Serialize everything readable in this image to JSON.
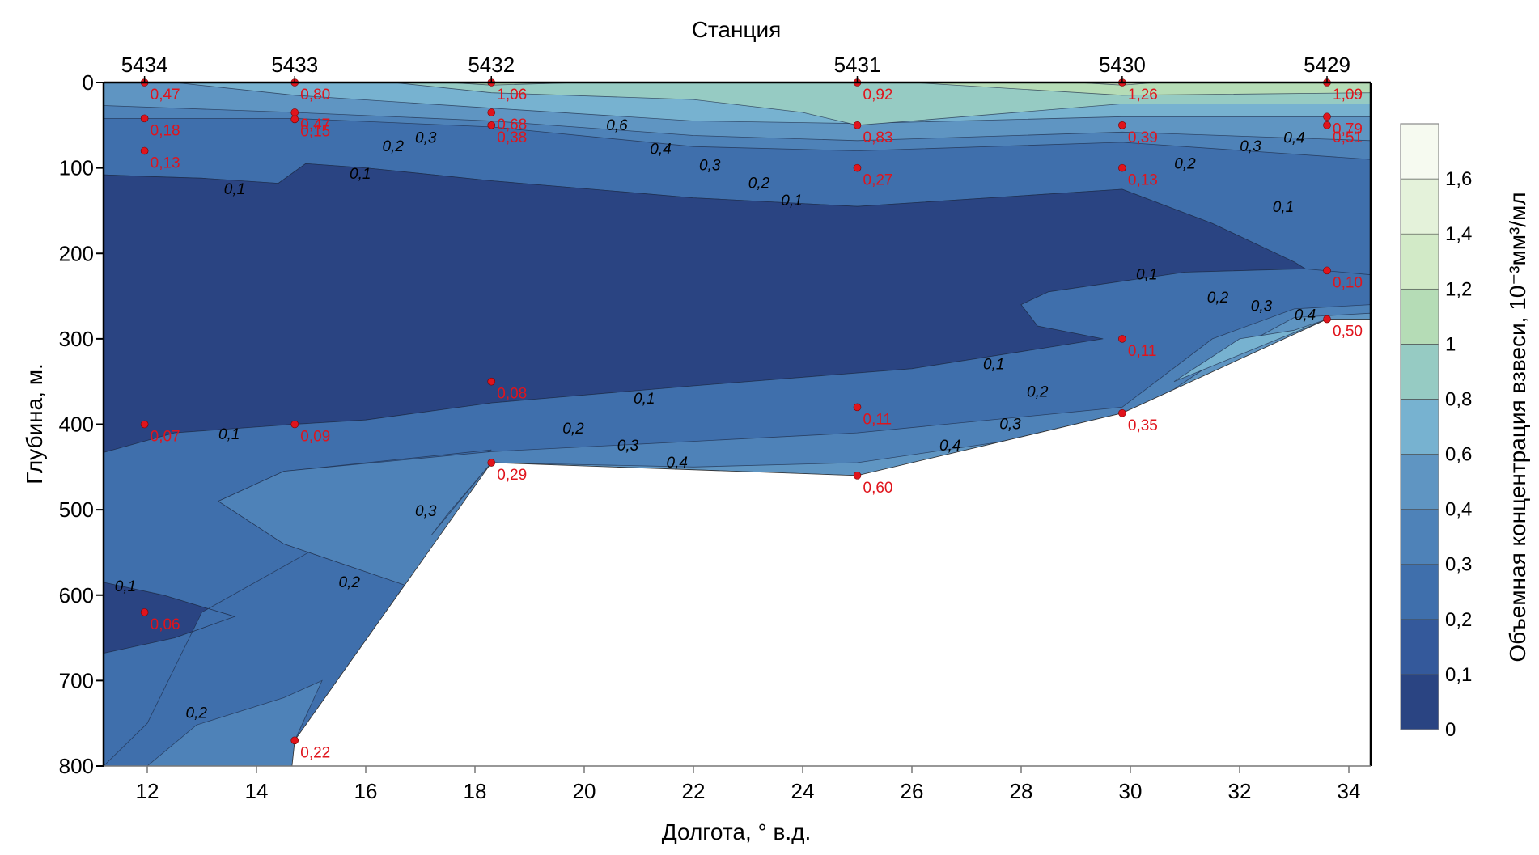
{
  "chart_data": {
    "type": "contour",
    "title": "Станция",
    "xlabel": "Долгота, ° в.д.",
    "ylabel": "Глубина, м.",
    "xlim": [
      11.2,
      34.4
    ],
    "ylim": [
      800,
      0
    ],
    "x_ticks": [
      12,
      14,
      16,
      18,
      20,
      22,
      24,
      26,
      28,
      30,
      32,
      34
    ],
    "y_ticks": [
      0,
      100,
      200,
      300,
      400,
      500,
      600,
      700,
      800
    ],
    "stations": [
      {
        "id": "5434",
        "lon": 11.95
      },
      {
        "id": "5433",
        "lon": 14.7
      },
      {
        "id": "5432",
        "lon": 18.3
      },
      {
        "id": "5431",
        "lon": 25.0
      },
      {
        "id": "5430",
        "lon": 29.85
      },
      {
        "id": "5429",
        "lon": 33.6
      }
    ],
    "colorbar": {
      "label": "Объемная концентрация взвеси, 10⁻³мм³/мл",
      "levels": [
        0,
        0.1,
        0.2,
        0.3,
        0.4,
        0.6,
        0.8,
        1,
        1.2,
        1.4,
        1.6,
        1.8
      ],
      "tick_labels": [
        "0",
        "0,1",
        "0,2",
        "0,3",
        "0,4",
        "0,6",
        "0,8",
        "1",
        "1,2",
        "1,4",
        "1,6"
      ],
      "colors": [
        "#2a4482",
        "#34599b",
        "#3f6fac",
        "#4e82b8",
        "#5f95c2",
        "#77b2d0",
        "#96cbc3",
        "#b5dcb6",
        "#d2eac7",
        "#e4f2da",
        "#f6faf0"
      ]
    },
    "observations": [
      {
        "lon": 11.95,
        "depth": 0,
        "value": "0,47"
      },
      {
        "lon": 11.95,
        "depth": 42,
        "value": "0,18"
      },
      {
        "lon": 11.95,
        "depth": 80,
        "value": "0,13"
      },
      {
        "lon": 11.95,
        "depth": 400,
        "value": "0,07"
      },
      {
        "lon": 11.95,
        "depth": 620,
        "value": "0,06"
      },
      {
        "lon": 14.7,
        "depth": 0,
        "value": "0,80"
      },
      {
        "lon": 14.7,
        "depth": 35,
        "value": "0,47"
      },
      {
        "lon": 14.7,
        "depth": 43,
        "value": "0,15"
      },
      {
        "lon": 14.7,
        "depth": 400,
        "value": "0,09"
      },
      {
        "lon": 14.7,
        "depth": 770,
        "value": "0,22"
      },
      {
        "lon": 18.3,
        "depth": 0,
        "value": "1,06"
      },
      {
        "lon": 18.3,
        "depth": 35,
        "value": "0,68"
      },
      {
        "lon": 18.3,
        "depth": 50,
        "value": "0,38"
      },
      {
        "lon": 18.3,
        "depth": 350,
        "value": "0,08"
      },
      {
        "lon": 18.3,
        "depth": 445,
        "value": "0,29"
      },
      {
        "lon": 25.0,
        "depth": 0,
        "value": "0,92"
      },
      {
        "lon": 25.0,
        "depth": 50,
        "value": "0,83"
      },
      {
        "lon": 25.0,
        "depth": 100,
        "value": "0,27"
      },
      {
        "lon": 25.0,
        "depth": 380,
        "value": "0,11"
      },
      {
        "lon": 25.0,
        "depth": 460,
        "value": "0,60"
      },
      {
        "lon": 29.85,
        "depth": 0,
        "value": "1,26"
      },
      {
        "lon": 29.85,
        "depth": 50,
        "value": "0,39"
      },
      {
        "lon": 29.85,
        "depth": 100,
        "value": "0,13"
      },
      {
        "lon": 29.85,
        "depth": 300,
        "value": "0,11"
      },
      {
        "lon": 29.85,
        "depth": 387,
        "value": "0,35"
      },
      {
        "lon": 33.6,
        "depth": 0,
        "value": "1,09"
      },
      {
        "lon": 33.6,
        "depth": 40,
        "value": "0,79"
      },
      {
        "lon": 33.6,
        "depth": 50,
        "value": "0,51"
      },
      {
        "lon": 33.6,
        "depth": 220,
        "value": "0,10"
      },
      {
        "lon": 33.6,
        "depth": 277,
        "value": "0,50"
      }
    ],
    "bottom_profile": [
      [
        11.2,
        800
      ],
      [
        14.65,
        800
      ],
      [
        14.7,
        770
      ],
      [
        18.3,
        445
      ],
      [
        25.0,
        460
      ],
      [
        29.85,
        387
      ],
      [
        33.6,
        277
      ],
      [
        34.4,
        277
      ]
    ],
    "regions": [
      {
        "level": 0.2,
        "points": [
          [
            11.2,
            0
          ],
          [
            34.4,
            0
          ],
          [
            34.4,
            277
          ],
          [
            33.6,
            277
          ],
          [
            29.85,
            387
          ],
          [
            25.0,
            460
          ],
          [
            18.3,
            445
          ],
          [
            14.7,
            770
          ],
          [
            14.65,
            800
          ],
          [
            11.2,
            800
          ]
        ]
      },
      {
        "level": 0.1,
        "points": [
          [
            11.2,
            108
          ],
          [
            12,
            110
          ],
          [
            13,
            112
          ],
          [
            14.4,
            118
          ],
          [
            14.9,
            95
          ],
          [
            16,
            100
          ],
          [
            18.3,
            115
          ],
          [
            22,
            135
          ],
          [
            25,
            145
          ],
          [
            29.85,
            125
          ],
          [
            31.5,
            165
          ],
          [
            33,
            210
          ],
          [
            33.2,
            218
          ],
          [
            31,
            222
          ],
          [
            28.5,
            245
          ],
          [
            28,
            260
          ],
          [
            28.3,
            285
          ],
          [
            29.5,
            300
          ],
          [
            26,
            335
          ],
          [
            22,
            355
          ],
          [
            18.3,
            375
          ],
          [
            16,
            395
          ],
          [
            14.7,
            400
          ],
          [
            12.5,
            410
          ],
          [
            11.2,
            433
          ],
          [
            11.2,
            108
          ]
        ]
      },
      {
        "level": 0.0,
        "points": [
          [
            11.2,
            108
          ],
          [
            12,
            110
          ],
          [
            13,
            112
          ],
          [
            14.4,
            118
          ],
          [
            14.9,
            95
          ],
          [
            16,
            100
          ],
          [
            18.3,
            115
          ],
          [
            22,
            135
          ],
          [
            25,
            145
          ],
          [
            29.85,
            125
          ],
          [
            31.5,
            165
          ],
          [
            33,
            210
          ],
          [
            33.2,
            218
          ],
          [
            31,
            222
          ],
          [
            28.5,
            245
          ],
          [
            28,
            260
          ],
          [
            28.3,
            285
          ],
          [
            29.5,
            300
          ],
          [
            26,
            335
          ],
          [
            22,
            355
          ],
          [
            18.3,
            375
          ],
          [
            16,
            395
          ],
          [
            14.7,
            400
          ],
          [
            12.5,
            410
          ],
          [
            11.2,
            433
          ]
        ]
      },
      {
        "level": 0.0,
        "points": [
          [
            11.2,
            585
          ],
          [
            12.3,
            600
          ],
          [
            13.6,
            625
          ],
          [
            12.5,
            650
          ],
          [
            11.2,
            668
          ]
        ]
      },
      {
        "level": 0.3,
        "points": [
          [
            11.2,
            42
          ],
          [
            14.7,
            42
          ],
          [
            18.3,
            52
          ],
          [
            22,
            75
          ],
          [
            25,
            80
          ],
          [
            29.85,
            70
          ],
          [
            34.4,
            90
          ],
          [
            34.4,
            0
          ],
          [
            11.2,
            0
          ]
        ]
      },
      {
        "level": 0.4,
        "points": [
          [
            11.2,
            27
          ],
          [
            14.7,
            35
          ],
          [
            18.3,
            45
          ],
          [
            22,
            62
          ],
          [
            25,
            68
          ],
          [
            29.85,
            58
          ],
          [
            34.4,
            68
          ],
          [
            34.4,
            0
          ],
          [
            11.2,
            0
          ]
        ]
      },
      {
        "level": 0.6,
        "points": [
          [
            12.5,
            0
          ],
          [
            14.7,
            15
          ],
          [
            18.3,
            30
          ],
          [
            22,
            45
          ],
          [
            25,
            48
          ],
          [
            29.85,
            40
          ],
          [
            34.4,
            40
          ],
          [
            34.4,
            0
          ]
        ]
      },
      {
        "level": 0.8,
        "points": [
          [
            16.5,
            0
          ],
          [
            18.3,
            12
          ],
          [
            22,
            20
          ],
          [
            24,
            35
          ],
          [
            25,
            50
          ],
          [
            26,
            45
          ],
          [
            29.85,
            25
          ],
          [
            34.4,
            25
          ],
          [
            34.4,
            0
          ]
        ]
      },
      {
        "level": 1.0,
        "points": [
          [
            17.5,
            0
          ],
          [
            18.3,
            3
          ],
          [
            20,
            0
          ]
        ]
      },
      {
        "level": 1.0,
        "points": [
          [
            26,
            0
          ],
          [
            29.85,
            15
          ],
          [
            34.4,
            12
          ],
          [
            34.4,
            0
          ]
        ]
      },
      {
        "level": 1.2,
        "points": [
          [
            29,
            0
          ],
          [
            29.85,
            3
          ],
          [
            30.5,
            0
          ]
        ]
      },
      {
        "level": 0.2,
        "points": [
          [
            11.2,
            433
          ],
          [
            12.5,
            410
          ],
          [
            14.7,
            400
          ],
          [
            16,
            395
          ],
          [
            18.3,
            375
          ],
          [
            22,
            355
          ],
          [
            26,
            335
          ],
          [
            29.5,
            300
          ],
          [
            28.3,
            285
          ],
          [
            28,
            260
          ],
          [
            28.5,
            245
          ],
          [
            31,
            222
          ],
          [
            33.2,
            218
          ],
          [
            34.4,
            225
          ],
          [
            34.4,
            277
          ],
          [
            33.6,
            277
          ],
          [
            29.85,
            387
          ],
          [
            25.0,
            460
          ],
          [
            18.3,
            445
          ],
          [
            16.8,
            590
          ],
          [
            14.5,
            540
          ],
          [
            13.3,
            490
          ],
          [
            14.5,
            455
          ],
          [
            18.3,
            430
          ],
          [
            13,
            620
          ],
          [
            12,
            750
          ],
          [
            11.2,
            800
          ],
          [
            11.2,
            668
          ],
          [
            12.5,
            650
          ],
          [
            13.6,
            625
          ],
          [
            12.3,
            600
          ],
          [
            11.2,
            585
          ]
        ]
      },
      {
        "level": 0.3,
        "points": [
          [
            13.3,
            490
          ],
          [
            14.5,
            455
          ],
          [
            18.3,
            432
          ],
          [
            22,
            420
          ],
          [
            25,
            410
          ],
          [
            29.85,
            380
          ],
          [
            31.5,
            300
          ],
          [
            33,
            265
          ],
          [
            34.4,
            260
          ],
          [
            34.4,
            277
          ],
          [
            33.6,
            277
          ],
          [
            29.85,
            387
          ],
          [
            25.0,
            460
          ],
          [
            18.3,
            445
          ],
          [
            16.8,
            590
          ],
          [
            14.5,
            540
          ]
        ]
      },
      {
        "level": 0.4,
        "points": [
          [
            22,
            450
          ],
          [
            25,
            445
          ],
          [
            29.85,
            400
          ],
          [
            31.7,
            320
          ],
          [
            33,
            275
          ],
          [
            34.4,
            270
          ],
          [
            34.4,
            277
          ],
          [
            33.6,
            277
          ],
          [
            29.85,
            387
          ],
          [
            25.0,
            460
          ],
          [
            18.3,
            445
          ]
        ]
      },
      {
        "level": 0.6,
        "points": [
          [
            30.8,
            350
          ],
          [
            33.6,
            277
          ],
          [
            33,
            290
          ],
          [
            32,
            300
          ]
        ]
      },
      {
        "level": 0.3,
        "points": [
          [
            12,
            800
          ],
          [
            12.9,
            752
          ],
          [
            14.5,
            720
          ],
          [
            15.2,
            700
          ],
          [
            14.7,
            770
          ],
          [
            14.65,
            800
          ]
        ]
      },
      {
        "level": 0.3,
        "points": [
          [
            17.2,
            530
          ],
          [
            18.3,
            445
          ],
          [
            17.9,
            475
          ],
          [
            17.5,
            505
          ]
        ]
      }
    ],
    "contour_labels": [
      {
        "lon": 15.9,
        "depth": 107,
        "text": "0,1"
      },
      {
        "lon": 13.6,
        "depth": 125,
        "text": "0,1"
      },
      {
        "lon": 23.8,
        "depth": 138,
        "text": "0,1"
      },
      {
        "lon": 32.8,
        "depth": 146,
        "text": "0,1"
      },
      {
        "lon": 30.3,
        "depth": 225,
        "text": "0,1"
      },
      {
        "lon": 27.5,
        "depth": 330,
        "text": "0,1"
      },
      {
        "lon": 21.1,
        "depth": 370,
        "text": "0,1"
      },
      {
        "lon": 13.5,
        "depth": 412,
        "text": "0,1"
      },
      {
        "lon": 11.6,
        "depth": 590,
        "text": "0,1"
      },
      {
        "lon": 17.1,
        "depth": 65,
        "text": "0,3"
      },
      {
        "lon": 16.5,
        "depth": 75,
        "text": "0,2"
      },
      {
        "lon": 20.6,
        "depth": 50,
        "text": "0,6"
      },
      {
        "lon": 21.4,
        "depth": 78,
        "text": "0,4"
      },
      {
        "lon": 22.3,
        "depth": 97,
        "text": "0,3"
      },
      {
        "lon": 23.2,
        "depth": 118,
        "text": "0,2"
      },
      {
        "lon": 31.0,
        "depth": 95,
        "text": "0,2"
      },
      {
        "lon": 32.2,
        "depth": 75,
        "text": "0,3"
      },
      {
        "lon": 33.0,
        "depth": 65,
        "text": "0,4"
      },
      {
        "lon": 31.6,
        "depth": 252,
        "text": "0,2"
      },
      {
        "lon": 32.4,
        "depth": 262,
        "text": "0,3"
      },
      {
        "lon": 33.2,
        "depth": 272,
        "text": "0,4"
      },
      {
        "lon": 28.3,
        "depth": 362,
        "text": "0,2"
      },
      {
        "lon": 27.8,
        "depth": 400,
        "text": "0,3"
      },
      {
        "lon": 26.7,
        "depth": 425,
        "text": "0,4"
      },
      {
        "lon": 19.8,
        "depth": 405,
        "text": "0,2"
      },
      {
        "lon": 20.8,
        "depth": 425,
        "text": "0,3"
      },
      {
        "lon": 21.7,
        "depth": 445,
        "text": "0,4"
      },
      {
        "lon": 17.1,
        "depth": 502,
        "text": "0,3"
      },
      {
        "lon": 15.7,
        "depth": 585,
        "text": "0,2"
      },
      {
        "lon": 12.9,
        "depth": 738,
        "text": "0,2"
      }
    ]
  }
}
